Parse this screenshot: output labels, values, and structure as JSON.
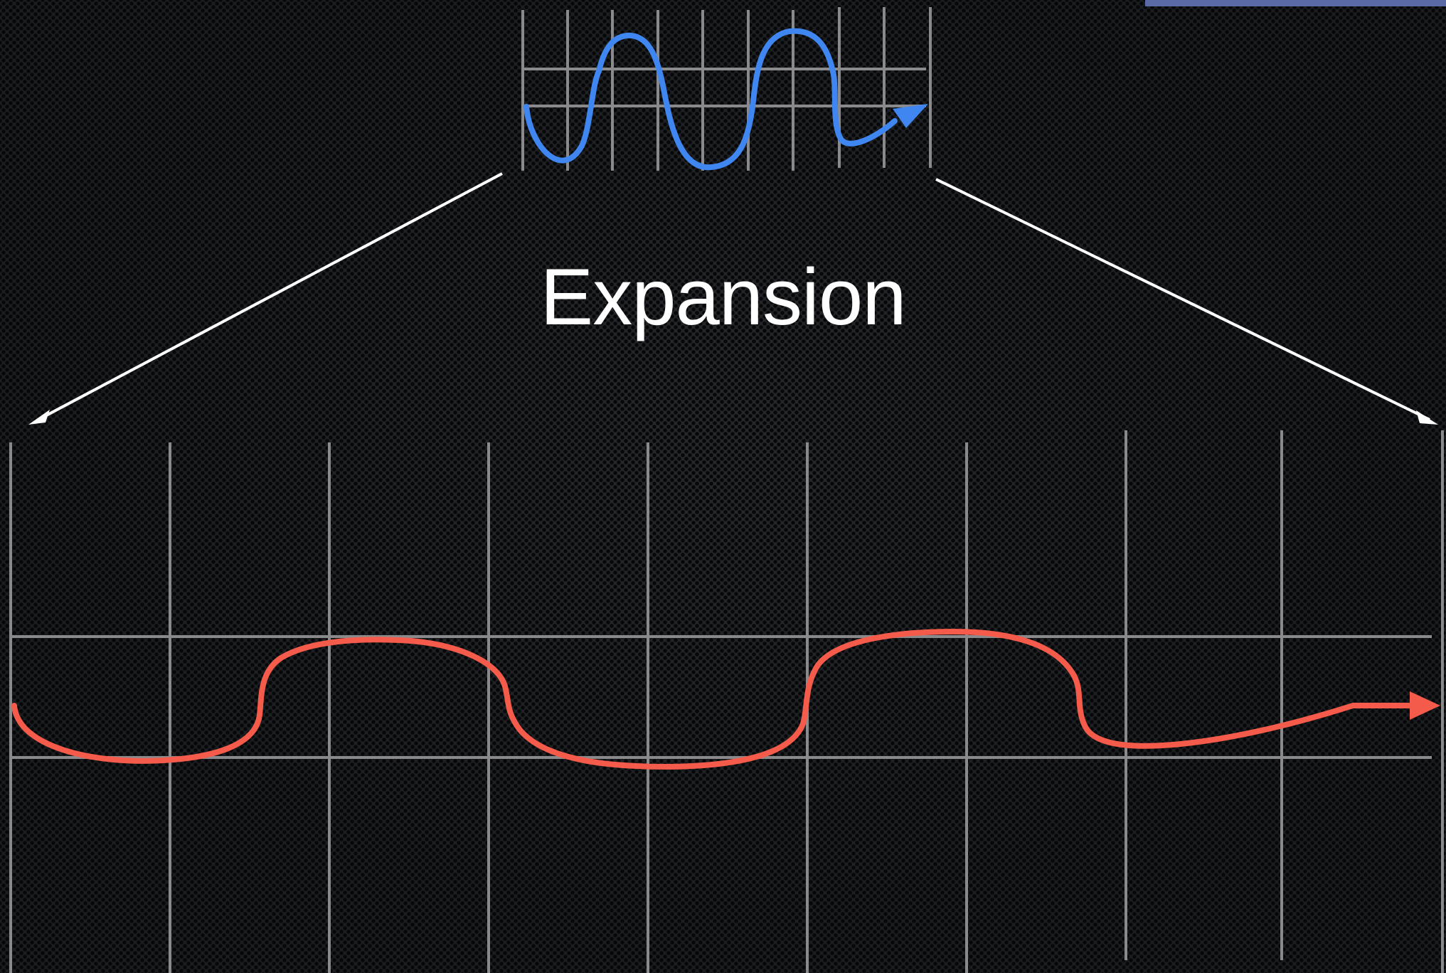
{
  "title": "Expansion",
  "colors": {
    "background": "#1c1d20",
    "grid": "#8a8a8c",
    "compressed_wave": "#3f86f0",
    "expanded_wave": "#f45b4a",
    "expansion_arrows": "#ffffff",
    "corner_tab": "#5a6aa6"
  },
  "icons": {
    "compressed_wave_head": "arrow-head-icon",
    "expanded_wave_head": "arrow-head-icon",
    "expansion_arrow_heads": "arrow-head-icon"
  }
}
